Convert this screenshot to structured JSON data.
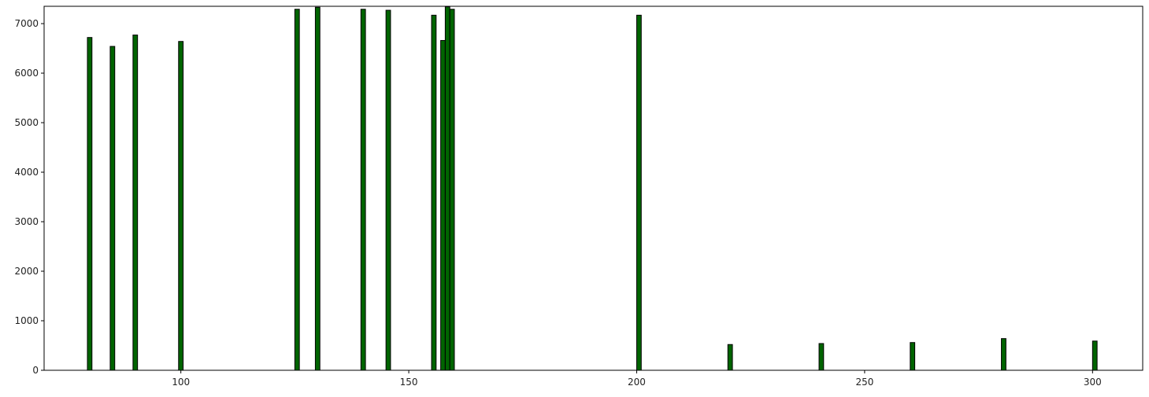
{
  "chart_data": {
    "type": "bar",
    "title": "",
    "xlabel": "",
    "ylabel": "",
    "xlim": [
      70,
      311
    ],
    "ylim": [
      0,
      7350
    ],
    "grid": false,
    "bar_color": "#006400",
    "edge_color": "#000000",
    "bar_width": 1,
    "x_ticks": [
      100,
      150,
      200,
      250,
      300
    ],
    "y_ticks": [
      0,
      1000,
      2000,
      3000,
      4000,
      5000,
      6000,
      7000
    ],
    "bars": [
      {
        "x": 80,
        "y": 6720
      },
      {
        "x": 85,
        "y": 6540
      },
      {
        "x": 90,
        "y": 6770
      },
      {
        "x": 100,
        "y": 6640
      },
      {
        "x": 125.5,
        "y": 7290
      },
      {
        "x": 130,
        "y": 7330
      },
      {
        "x": 140,
        "y": 7290
      },
      {
        "x": 145.5,
        "y": 7270
      },
      {
        "x": 155.5,
        "y": 7170
      },
      {
        "x": 157.5,
        "y": 6660
      },
      {
        "x": 158.5,
        "y": 7340
      },
      {
        "x": 159.5,
        "y": 7290
      },
      {
        "x": 200.5,
        "y": 7170
      },
      {
        "x": 220.5,
        "y": 520
      },
      {
        "x": 240.5,
        "y": 540
      },
      {
        "x": 260.5,
        "y": 560
      },
      {
        "x": 280.5,
        "y": 640
      },
      {
        "x": 300.5,
        "y": 590
      }
    ]
  }
}
